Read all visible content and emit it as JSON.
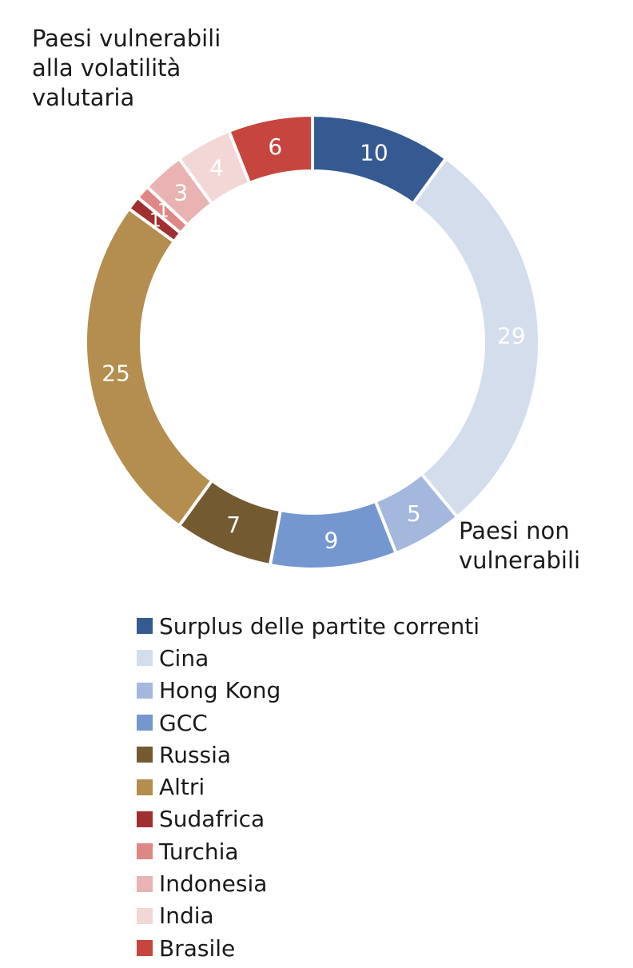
{
  "annotations": {
    "vulnerable": [
      "Paesi vulnerabili",
      "alla volatilità",
      "valutaria"
    ],
    "non_vulnerable": [
      "Paesi non",
      "vulnerabili"
    ]
  },
  "chart_data": {
    "type": "pie",
    "donut": true,
    "start": "top, clockwise",
    "legend_position": "bottom",
    "series": [
      {
        "label": "Surplus delle partite correnti",
        "value": 10,
        "color": "#355a92",
        "label_color": "#ffffff"
      },
      {
        "label": "Cina",
        "value": 29,
        "color": "#d3ddec",
        "label_color": "#ffffff"
      },
      {
        "label": "Hong Kong",
        "value": 5,
        "color": "#a4b8dd",
        "label_color": "#ffffff"
      },
      {
        "label": "GCC",
        "value": 9,
        "color": "#7597cf",
        "label_color": "#ffffff"
      },
      {
        "label": "Russia",
        "value": 7,
        "color": "#735a31",
        "label_color": "#ffffff"
      },
      {
        "label": "Altri",
        "value": 25,
        "color": "#b38e4e",
        "label_color": "#ffffff"
      },
      {
        "label": "Sudafrica",
        "value": 1,
        "color": "#a02f30",
        "label_color": "#ffffff"
      },
      {
        "label": "Turchia",
        "value": 1,
        "color": "#df8787",
        "label_color": "#ffffff"
      },
      {
        "label": "Indonesia",
        "value": 3,
        "color": "#e8b3b2",
        "label_color": "#ffffff"
      },
      {
        "label": "India",
        "value": 4,
        "color": "#f3d6d6",
        "label_color": "#ffffff"
      },
      {
        "label": "Brasile",
        "value": 6,
        "color": "#c6463f",
        "label_color": "#ffffff"
      }
    ]
  }
}
